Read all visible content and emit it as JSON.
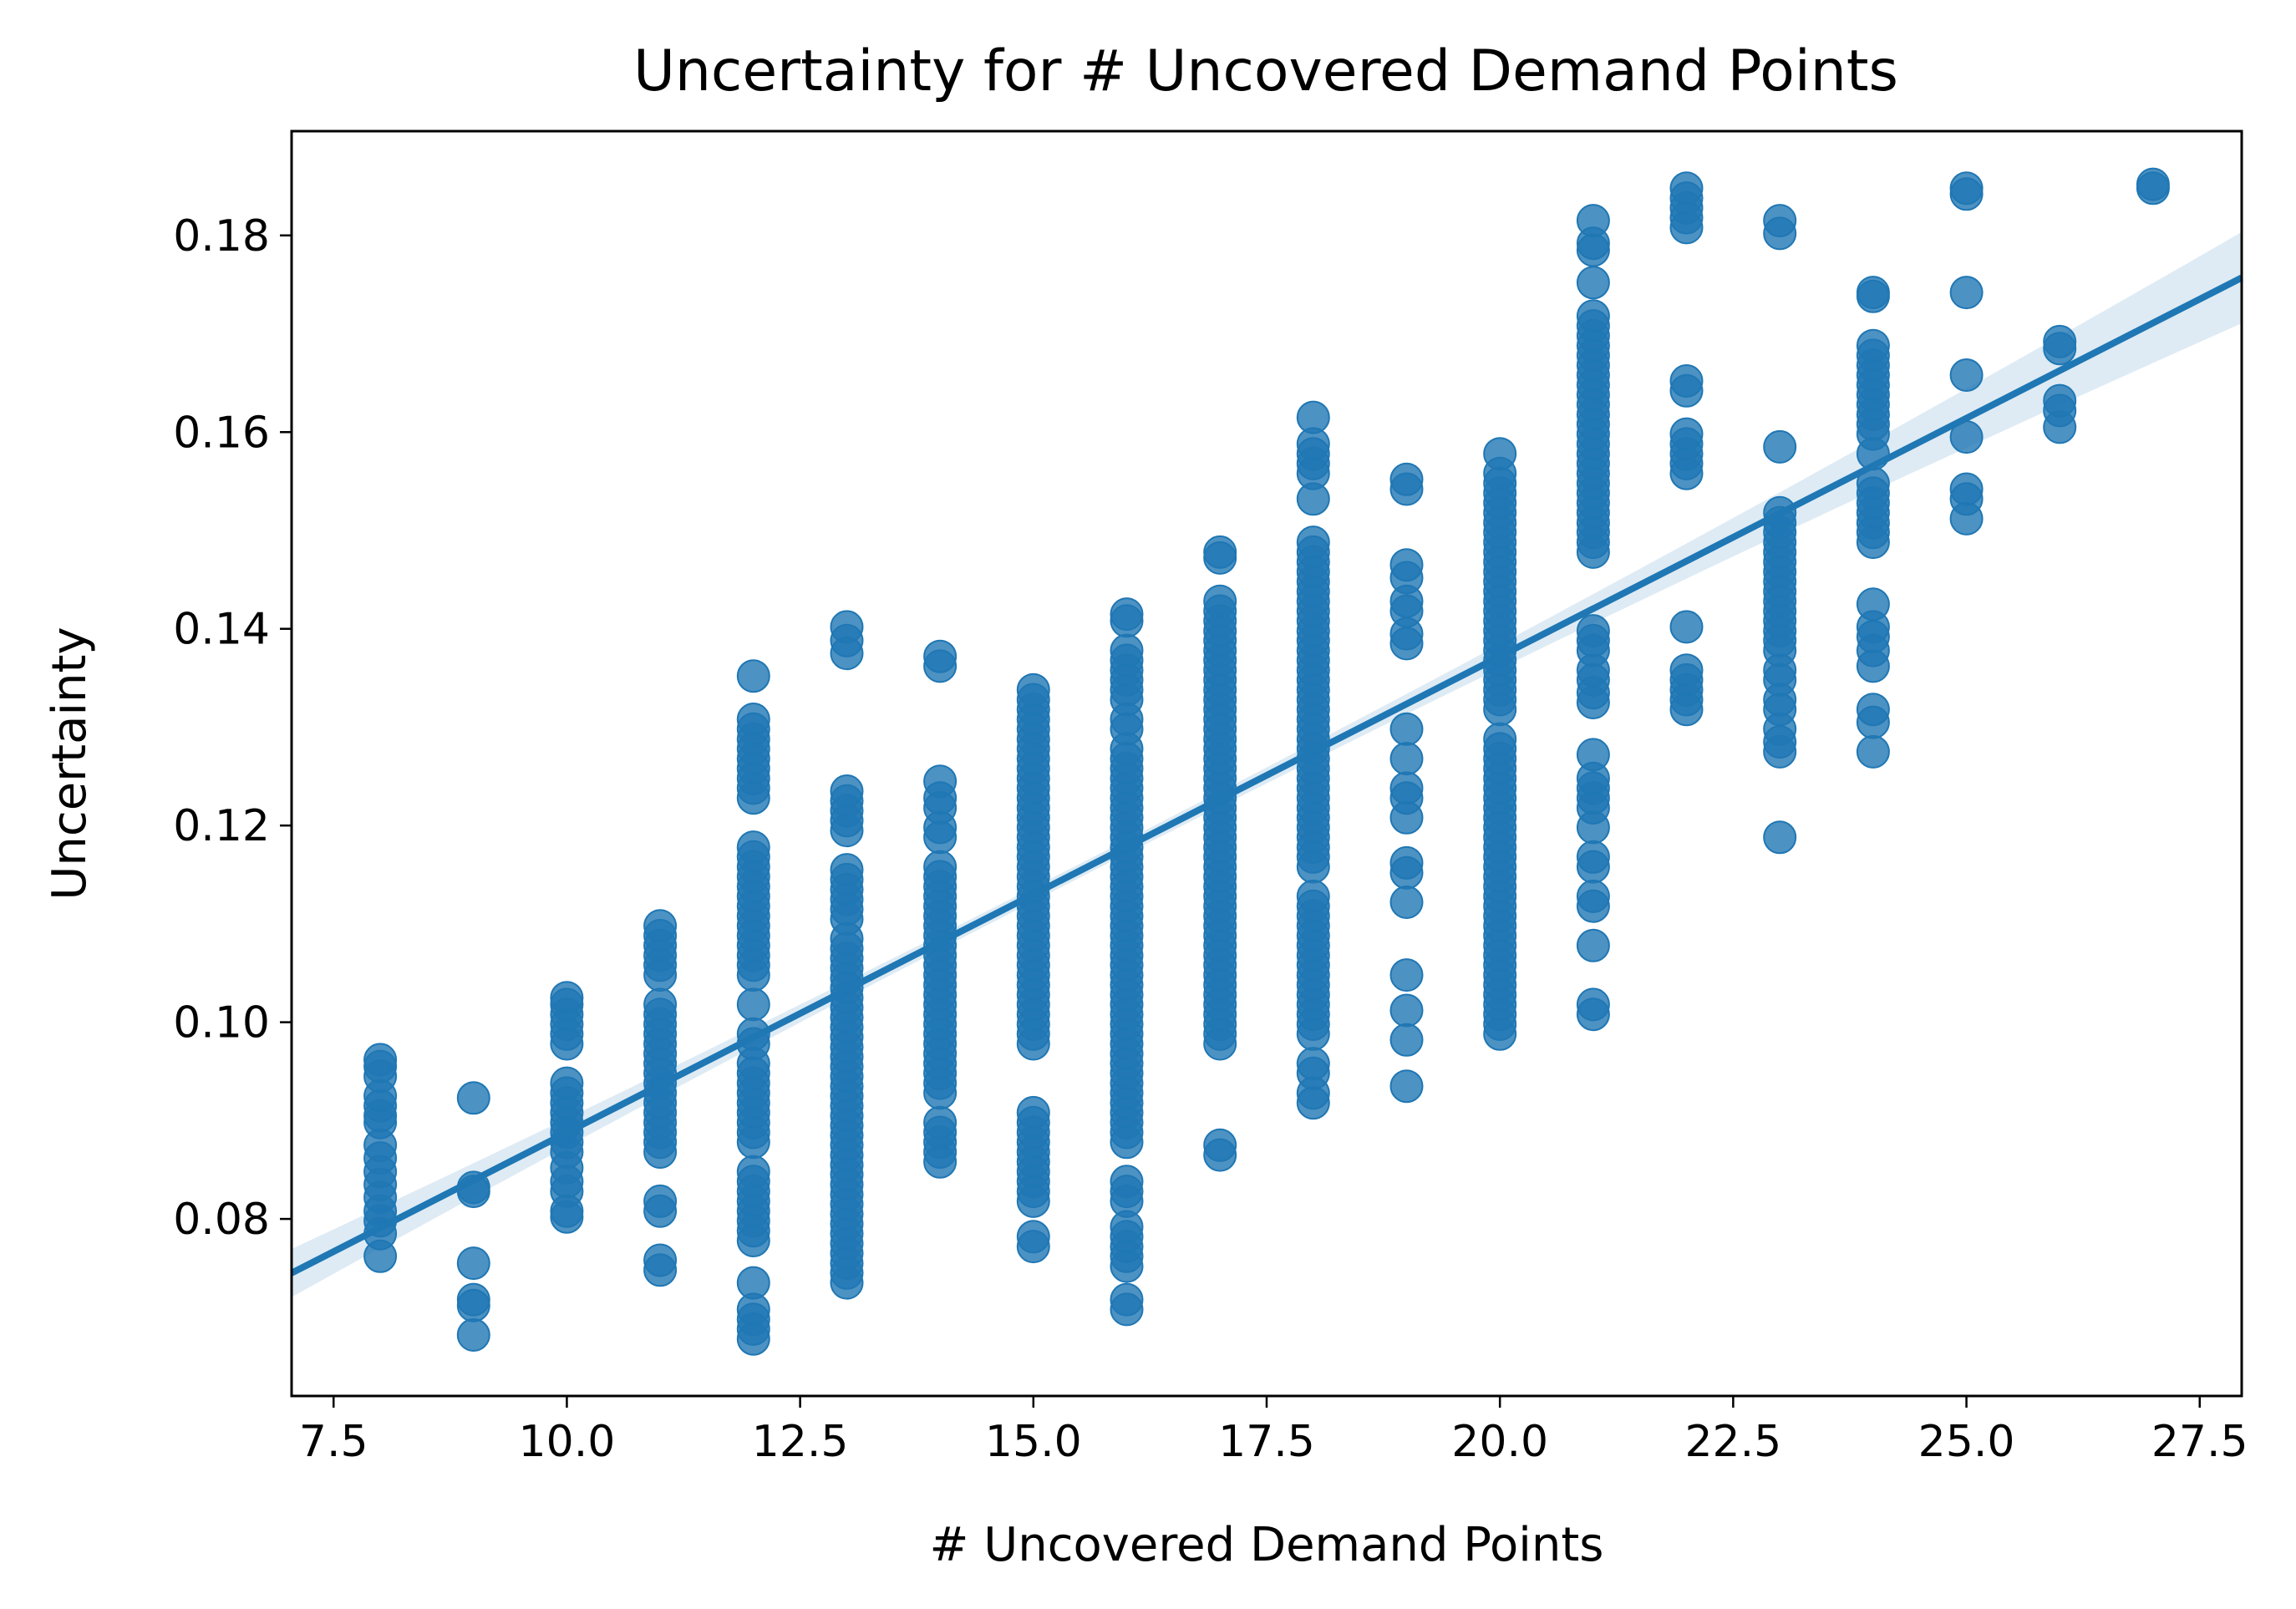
{
  "chart_data": {
    "type": "scatter",
    "title": "Uncertainty for # Uncovered Demand Points",
    "xlabel": "# Uncovered Demand Points",
    "ylabel": "Uncertainty",
    "xlim": [
      7.05,
      27.95
    ],
    "ylim": [
      0.062,
      0.1906
    ],
    "xticks": [
      "7.5",
      "10.0",
      "12.5",
      "15.0",
      "17.5",
      "20.0",
      "22.5",
      "25.0",
      "27.5"
    ],
    "yticks": [
      "0.08",
      "0.10",
      "0.12",
      "0.14",
      "0.16",
      "0.18"
    ],
    "grid": false,
    "legend": "none",
    "color": "#1f77b4",
    "regression_line": {
      "x": [
        7.05,
        27.95
      ],
      "y": [
        0.0745,
        0.1757
      ]
    },
    "points_by_x": [
      {
        "x": 8,
        "y": [
          0.0762,
          0.0785,
          0.0798,
          0.0808,
          0.0822,
          0.0835,
          0.0848,
          0.0862,
          0.0875,
          0.0898,
          0.0905,
          0.0915,
          0.0925,
          0.0945,
          0.0955,
          0.0962
        ]
      },
      {
        "x": 9,
        "y": [
          0.0682,
          0.0712,
          0.0718,
          0.0755,
          0.0828,
          0.0832,
          0.0923
        ]
      },
      {
        "x": 10,
        "y": [
          0.0802,
          0.0808,
          0.0828,
          0.0838,
          0.0852,
          0.0868,
          0.0878,
          0.0888,
          0.0898,
          0.0908,
          0.0918,
          0.0928,
          0.0938,
          0.0978,
          0.0988,
          0.0998,
          0.1008,
          0.1018,
          0.1025
        ]
      },
      {
        "x": 11,
        "y": [
          0.0748,
          0.0758,
          0.0808,
          0.0818,
          0.0868,
          0.0878,
          0.0888,
          0.0898,
          0.0908,
          0.0918,
          0.0928,
          0.0938,
          0.0948,
          0.0958,
          0.0968,
          0.0978,
          0.0988,
          0.0998,
          0.1008,
          0.1018,
          0.1048,
          0.1058,
          0.1068,
          0.1078,
          0.1088,
          0.1098
        ]
      },
      {
        "x": 12,
        "y": [
          0.0678,
          0.0688,
          0.0698,
          0.0708,
          0.0735,
          0.0778,
          0.0788,
          0.0798,
          0.0808,
          0.0818,
          0.0828,
          0.0838,
          0.0848,
          0.0878,
          0.0888,
          0.0898,
          0.0908,
          0.0918,
          0.0928,
          0.0938,
          0.0948,
          0.0958,
          0.0978,
          0.0988,
          0.1018,
          0.1048,
          0.1058,
          0.1068,
          0.1078,
          0.1088,
          0.1098,
          0.1108,
          0.1118,
          0.1128,
          0.1138,
          0.1148,
          0.1158,
          0.1168,
          0.1178,
          0.1228,
          0.1238,
          0.1248,
          0.1258,
          0.1268,
          0.1278,
          0.1288,
          0.1298,
          0.1308,
          0.1352
        ]
      },
      {
        "x": 13,
        "y": [
          0.0735,
          0.0745,
          0.0755,
          0.0765,
          0.0775,
          0.0785,
          0.0795,
          0.0805,
          0.0815,
          0.0825,
          0.0835,
          0.0845,
          0.0855,
          0.0865,
          0.0875,
          0.0885,
          0.0895,
          0.0905,
          0.0915,
          0.0925,
          0.0935,
          0.0945,
          0.0955,
          0.0965,
          0.0975,
          0.0985,
          0.0995,
          0.1005,
          0.1015,
          0.1025,
          0.1035,
          0.1045,
          0.1055,
          0.1065,
          0.1075,
          0.1085,
          0.1105,
          0.1115,
          0.1125,
          0.1135,
          0.1145,
          0.1155,
          0.1195,
          0.1205,
          0.1215,
          0.1225,
          0.1235,
          0.1375,
          0.1388,
          0.1402
        ]
      },
      {
        "x": 14,
        "y": [
          0.0858,
          0.0868,
          0.0878,
          0.0888,
          0.0898,
          0.0928,
          0.0938,
          0.0948,
          0.0958,
          0.0968,
          0.0978,
          0.0988,
          0.0998,
          0.1008,
          0.1018,
          0.1028,
          0.1038,
          0.1048,
          0.1058,
          0.1068,
          0.1078,
          0.1088,
          0.1098,
          0.1108,
          0.1118,
          0.1128,
          0.1138,
          0.1148,
          0.1158,
          0.1188,
          0.1198,
          0.1218,
          0.1228,
          0.1245,
          0.1362,
          0.1372
        ]
      },
      {
        "x": 15,
        "y": [
          0.0772,
          0.0782,
          0.0818,
          0.0828,
          0.0838,
          0.0848,
          0.0858,
          0.0868,
          0.0878,
          0.0888,
          0.0898,
          0.0908,
          0.0978,
          0.0988,
          0.0998,
          0.1008,
          0.1018,
          0.1028,
          0.1038,
          0.1048,
          0.1058,
          0.1068,
          0.1078,
          0.1088,
          0.1098,
          0.1108,
          0.1118,
          0.1128,
          0.1138,
          0.1148,
          0.1158,
          0.1168,
          0.1178,
          0.1188,
          0.1198,
          0.1208,
          0.1218,
          0.1228,
          0.1238,
          0.1248,
          0.1258,
          0.1268,
          0.1278,
          0.1288,
          0.1298,
          0.1308,
          0.1318,
          0.1328,
          0.1338
        ]
      },
      {
        "x": 16,
        "y": [
          0.0708,
          0.0718,
          0.0752,
          0.0762,
          0.0772,
          0.0782,
          0.0792,
          0.0818,
          0.0828,
          0.0838,
          0.0878,
          0.0888,
          0.0898,
          0.0908,
          0.0918,
          0.0928,
          0.0938,
          0.0948,
          0.0958,
          0.0968,
          0.0978,
          0.0988,
          0.0998,
          0.1008,
          0.1018,
          0.1028,
          0.1038,
          0.1048,
          0.1058,
          0.1068,
          0.1078,
          0.1088,
          0.1098,
          0.1108,
          0.1118,
          0.1128,
          0.1138,
          0.1148,
          0.1158,
          0.1168,
          0.1178,
          0.1188,
          0.1198,
          0.1208,
          0.1218,
          0.1228,
          0.1238,
          0.1248,
          0.1258,
          0.1268,
          0.1278,
          0.1298,
          0.1308,
          0.1328,
          0.1338,
          0.1348,
          0.1358,
          0.1368,
          0.1378,
          0.1408,
          0.1415
        ]
      },
      {
        "x": 17,
        "y": [
          0.0865,
          0.0875,
          0.0978,
          0.0988,
          0.0998,
          0.1008,
          0.1018,
          0.1028,
          0.1038,
          0.1048,
          0.1058,
          0.1068,
          0.1078,
          0.1088,
          0.1098,
          0.1108,
          0.1118,
          0.1128,
          0.1138,
          0.1148,
          0.1158,
          0.1168,
          0.1178,
          0.1188,
          0.1198,
          0.1208,
          0.1218,
          0.1228,
          0.1238,
          0.1248,
          0.1258,
          0.1268,
          0.1278,
          0.1288,
          0.1298,
          0.1308,
          0.1318,
          0.1328,
          0.1338,
          0.1348,
          0.1358,
          0.1368,
          0.1378,
          0.1388,
          0.1398,
          0.1408,
          0.1418,
          0.1428,
          0.1472,
          0.1478
        ]
      },
      {
        "x": 18,
        "y": [
          0.0918,
          0.0928,
          0.0948,
          0.0958,
          0.0988,
          0.0998,
          0.1008,
          0.1018,
          0.1028,
          0.1038,
          0.1048,
          0.1058,
          0.1068,
          0.1078,
          0.1088,
          0.1098,
          0.1108,
          0.1118,
          0.1128,
          0.1158,
          0.1168,
          0.1178,
          0.1188,
          0.1198,
          0.1208,
          0.1218,
          0.1228,
          0.1238,
          0.1248,
          0.1258,
          0.1268,
          0.1278,
          0.1288,
          0.1298,
          0.1308,
          0.1318,
          0.1328,
          0.1338,
          0.1348,
          0.1358,
          0.1368,
          0.1378,
          0.1388,
          0.1398,
          0.1408,
          0.1418,
          0.1428,
          0.1438,
          0.1448,
          0.1458,
          0.1468,
          0.1478,
          0.1488,
          0.1532,
          0.1558,
          0.1568,
          0.1578,
          0.1588,
          0.1615
        ]
      },
      {
        "x": 19,
        "y": [
          0.0935,
          0.0982,
          0.1012,
          0.1048,
          0.1122,
          0.1152,
          0.1162,
          0.1208,
          0.1228,
          0.1238,
          0.1268,
          0.1298,
          0.1385,
          0.1395,
          0.1418,
          0.1428,
          0.1452,
          0.1465,
          0.1542,
          0.1552
        ]
      },
      {
        "x": 20,
        "y": [
          0.0988,
          0.0998,
          0.1008,
          0.1018,
          0.1028,
          0.1038,
          0.1048,
          0.1058,
          0.1068,
          0.1078,
          0.1088,
          0.1098,
          0.1108,
          0.1118,
          0.1128,
          0.1138,
          0.1148,
          0.1158,
          0.1168,
          0.1178,
          0.1188,
          0.1198,
          0.1208,
          0.1218,
          0.1228,
          0.1238,
          0.1248,
          0.1258,
          0.1268,
          0.1278,
          0.1288,
          0.1318,
          0.1328,
          0.1338,
          0.1348,
          0.1358,
          0.1368,
          0.1378,
          0.1388,
          0.1398,
          0.1408,
          0.1418,
          0.1428,
          0.1438,
          0.1448,
          0.1458,
          0.1468,
          0.1478,
          0.1488,
          0.1498,
          0.1508,
          0.1518,
          0.1528,
          0.1538,
          0.1548,
          0.1558,
          0.1578
        ]
      },
      {
        "x": 21,
        "y": [
          0.1008,
          0.1018,
          0.1078,
          0.1118,
          0.1128,
          0.1158,
          0.1168,
          0.1198,
          0.1218,
          0.1228,
          0.1238,
          0.1248,
          0.1272,
          0.1325,
          0.1335,
          0.1348,
          0.1358,
          0.1378,
          0.1388,
          0.1398,
          0.1478,
          0.1488,
          0.1498,
          0.1508,
          0.1518,
          0.1528,
          0.1538,
          0.1548,
          0.1558,
          0.1568,
          0.1578,
          0.1588,
          0.1598,
          0.1608,
          0.1618,
          0.1628,
          0.1638,
          0.1648,
          0.1658,
          0.1668,
          0.1678,
          0.1688,
          0.1698,
          0.1708,
          0.1718,
          0.1752,
          0.1785,
          0.1792,
          0.1815
        ]
      },
      {
        "x": 22,
        "y": [
          0.1318,
          0.1328,
          0.1338,
          0.1348,
          0.1358,
          0.1402,
          0.1558,
          0.1568,
          0.1578,
          0.1588,
          0.1598,
          0.1642,
          0.1652,
          0.1808,
          0.1818,
          0.1828,
          0.1838,
          0.1848
        ]
      },
      {
        "x": 23,
        "y": [
          0.1188,
          0.1275,
          0.1285,
          0.1298,
          0.1318,
          0.1328,
          0.1348,
          0.1358,
          0.1378,
          0.1388,
          0.1398,
          0.1408,
          0.1418,
          0.1428,
          0.1438,
          0.1448,
          0.1458,
          0.1468,
          0.1478,
          0.1488,
          0.1498,
          0.1508,
          0.1518,
          0.1585,
          0.1802,
          0.1815
        ]
      },
      {
        "x": 24,
        "y": [
          0.1275,
          0.1305,
          0.1318,
          0.1362,
          0.1378,
          0.1392,
          0.1402,
          0.1425,
          0.1488,
          0.1498,
          0.1508,
          0.1518,
          0.1528,
          0.1538,
          0.1548,
          0.1578,
          0.1598,
          0.1608,
          0.1618,
          0.1628,
          0.1638,
          0.1648,
          0.1658,
          0.1668,
          0.1678,
          0.1688,
          0.1738,
          0.1742
        ]
      },
      {
        "x": 25,
        "y": [
          0.1512,
          0.1532,
          0.1542,
          0.1595,
          0.1658,
          0.1742,
          0.1842,
          0.1848
        ]
      },
      {
        "x": 26,
        "y": [
          0.1605,
          0.1622,
          0.1632,
          0.1685,
          0.1692
        ]
      },
      {
        "x": 27,
        "y": [
          0.1848,
          0.1852
        ]
      }
    ]
  }
}
